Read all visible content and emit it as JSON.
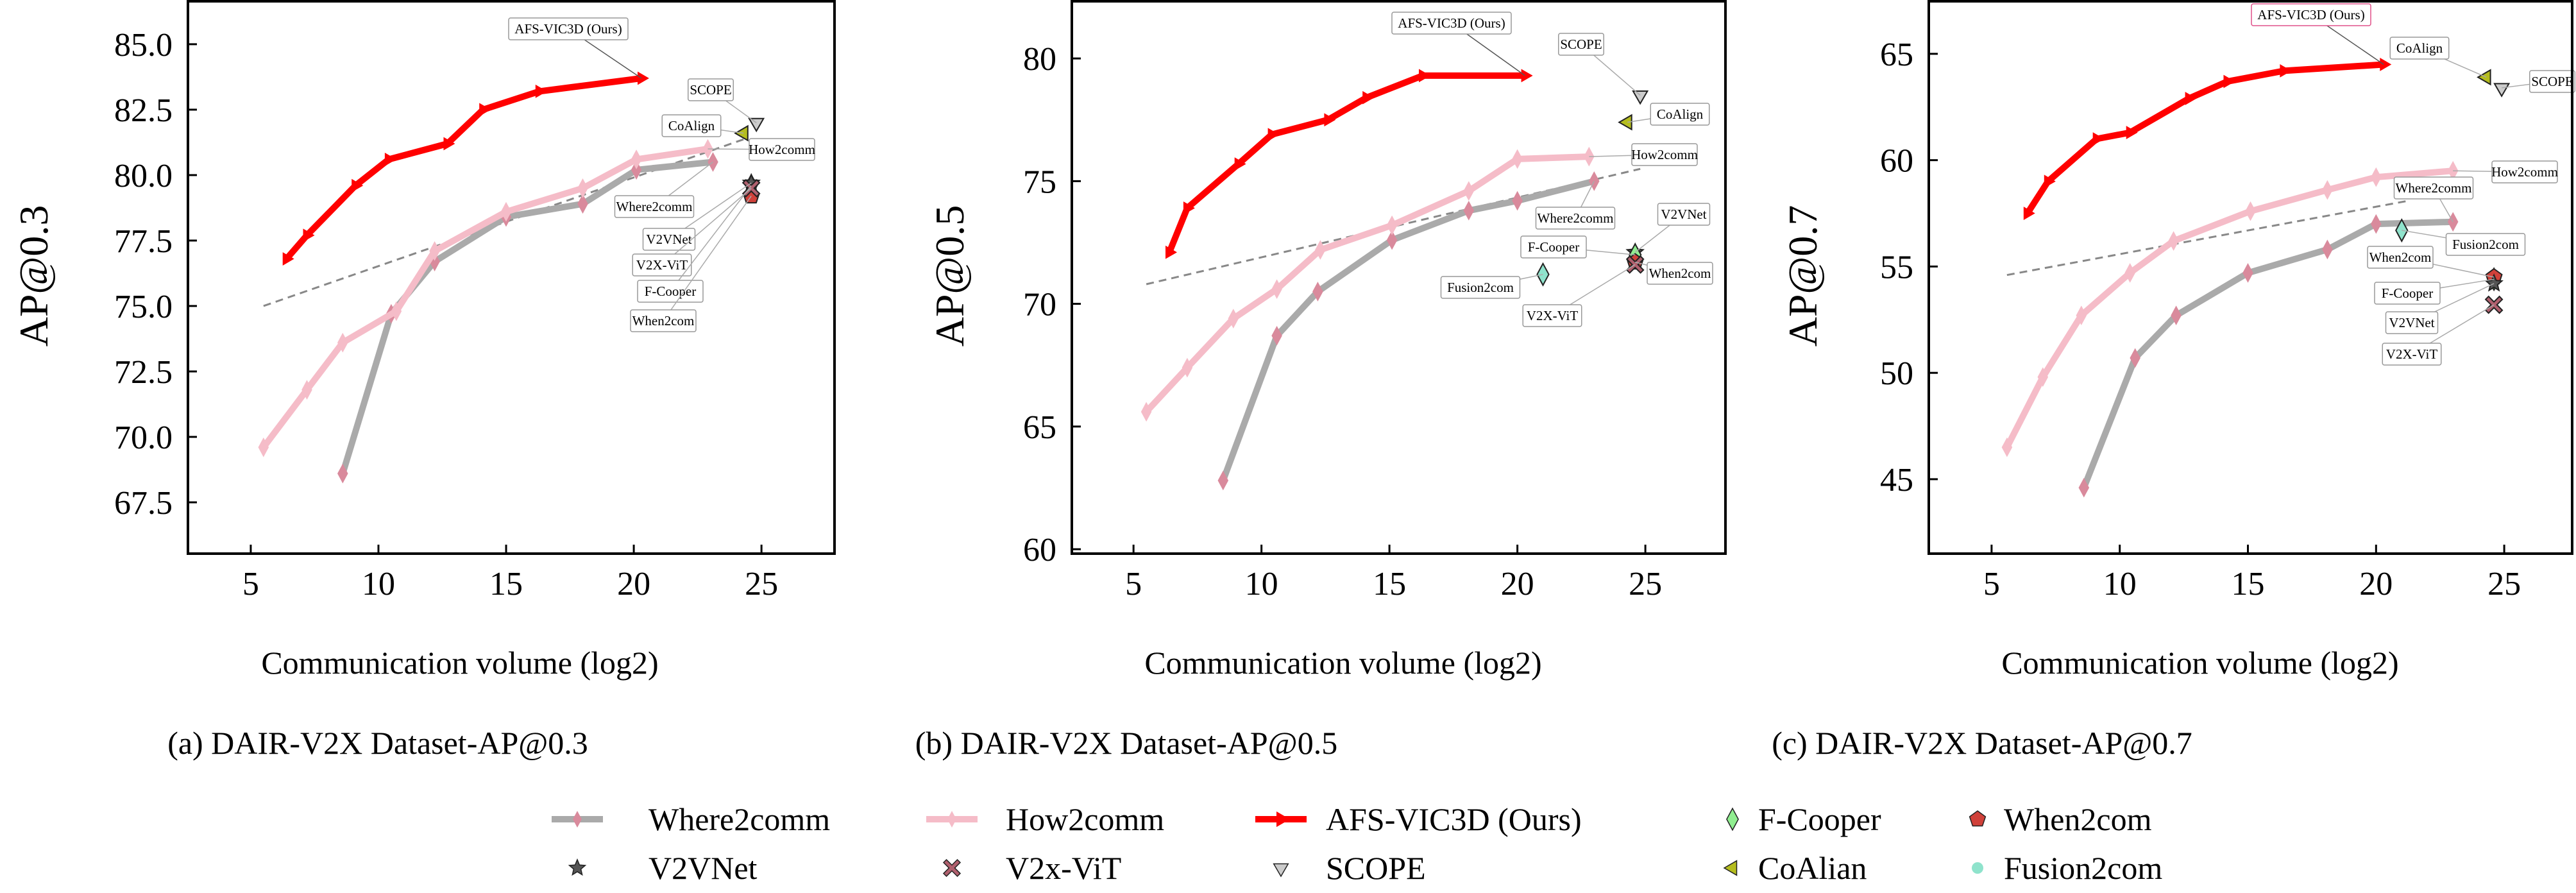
{
  "colors": {
    "afs": "#ff0000",
    "how2comm": "#f5bcc8",
    "where2comm": "#aaaaaa",
    "where2comm_marker": "#d98a9c",
    "dashed": "#888888",
    "f_cooper": "#90ee90",
    "when2com": "#d0413a",
    "v2vnet": "#555555",
    "v2x_vit": "#b0606e",
    "scope": "#cccccc",
    "coalign": "#b5bd1e",
    "fusion2com": "#8fe3cc"
  },
  "legend": {
    "items": [
      {
        "label": "Where2comm",
        "icon": "line-diamond-gray"
      },
      {
        "label": "How2comm",
        "icon": "line-pink"
      },
      {
        "label": "AFS-VIC3D (Ours)",
        "icon": "line-red-triangle"
      },
      {
        "label": "F-Cooper",
        "icon": "diamond-green"
      },
      {
        "label": "When2com",
        "icon": "pentagon-red"
      },
      {
        "label": "V2VNet",
        "icon": "star-dark"
      },
      {
        "label": "V2x-ViT",
        "icon": "x-mauve"
      },
      {
        "label": "SCOPE",
        "icon": "triangle-down-gray"
      },
      {
        "label": "CoAlian",
        "icon": "triangle-left-olive"
      },
      {
        "label": "Fusion2com",
        "icon": "circle-teal"
      }
    ]
  },
  "chart_data": [
    {
      "type": "line",
      "title": "(a) DAIR-V2X Dataset-AP@0.3",
      "xlabel": "Communication volume (log2)",
      "ylabel": "AP@0.3",
      "xlim": [
        2.54,
        27.86
      ],
      "ylim": [
        65.54,
        86.64
      ],
      "xticks": [
        5,
        10,
        15,
        20,
        25
      ],
      "xtick_labels": [
        "5",
        "10",
        "15",
        "20",
        "25"
      ],
      "yticks": [
        67.5,
        70,
        72.5,
        75,
        77.5,
        80,
        82.5,
        85
      ],
      "ytick_labels": [
        "67.5",
        "70.0",
        "72.5",
        "75.0",
        "77.5",
        "80.0",
        "82.5",
        "85.0"
      ],
      "grid": false,
      "series": [
        {
          "name": "Where2comm",
          "x": [
            8.6,
            10.5,
            12.2,
            15.0,
            18.0,
            20.1,
            23.1
          ],
          "y": [
            68.6,
            74.7,
            76.7,
            78.4,
            78.9,
            80.2,
            80.5
          ]
        },
        {
          "name": "How2comm",
          "x": [
            5.5,
            7.2,
            8.6,
            10.7,
            12.2,
            15.0,
            18.0,
            20.1,
            22.9
          ],
          "y": [
            69.6,
            71.8,
            73.6,
            74.8,
            77.1,
            78.6,
            79.5,
            80.6,
            81.0
          ]
        },
        {
          "name": "AFS-VIC3D (Ours)",
          "x": [
            6.4,
            7.2,
            9.1,
            10.4,
            12.7,
            14.1,
            16.3,
            20.3
          ],
          "y": [
            76.8,
            77.7,
            79.6,
            80.6,
            81.2,
            82.5,
            83.2,
            83.7
          ]
        }
      ],
      "trend": {
        "x": [
          5.5,
          24.4
        ],
        "y": [
          75.0,
          81.4
        ]
      },
      "points": [
        {
          "name": "F-Cooper",
          "x": 24.6,
          "y": 79.6
        },
        {
          "name": "When2com",
          "x": 24.6,
          "y": 79.2
        },
        {
          "name": "V2VNet",
          "x": 24.6,
          "y": 79.7
        },
        {
          "name": "V2X-ViT",
          "x": 24.6,
          "y": 79.5
        },
        {
          "name": "SCOPE",
          "x": 24.8,
          "y": 82.0
        },
        {
          "name": "CoAlign",
          "x": 24.3,
          "y": 81.6
        }
      ],
      "annotations": [
        "AFS-VIC3D (Ours)",
        "SCOPE",
        "CoAlign",
        "How2comm",
        "Where2comm",
        "V2VNet",
        "V2X-ViT",
        "F-Cooper",
        "When2com"
      ]
    },
    {
      "type": "line",
      "title": "(b) DAIR-V2X Dataset-AP@0.5",
      "xlabel": "Communication volume (log2)",
      "ylabel": "AP@0.5",
      "xlim": [
        2.59,
        28.13
      ],
      "ylim": [
        59.82,
        82.33
      ],
      "xticks": [
        5,
        10,
        15,
        20,
        25
      ],
      "xtick_labels": [
        "5",
        "10",
        "15",
        "20",
        "25"
      ],
      "yticks": [
        60,
        65,
        70,
        75,
        80
      ],
      "ytick_labels": [
        "60",
        "65",
        "70",
        "75",
        "80"
      ],
      "grid": false,
      "series": [
        {
          "name": "Where2comm",
          "x": [
            8.5,
            10.6,
            12.2,
            15.1,
            18.1,
            20.0,
            23.0
          ],
          "y": [
            62.8,
            68.7,
            70.5,
            72.6,
            73.8,
            74.2,
            75.0
          ]
        },
        {
          "name": "How2comm",
          "x": [
            5.5,
            7.1,
            8.9,
            10.6,
            12.3,
            15.1,
            18.1,
            20.0,
            22.8
          ],
          "y": [
            65.6,
            67.4,
            69.4,
            70.6,
            72.2,
            73.2,
            74.6,
            75.9,
            76.0
          ]
        },
        {
          "name": "AFS-VIC3D (Ours)",
          "x": [
            6.4,
            7.1,
            9.1,
            10.4,
            12.6,
            14.1,
            16.3,
            20.3
          ],
          "y": [
            72.1,
            73.9,
            75.7,
            76.9,
            77.5,
            78.4,
            79.3,
            79.3
          ]
        }
      ],
      "trend": {
        "x": [
          5.5,
          24.8
        ],
        "y": [
          70.8,
          75.5
        ]
      },
      "points": [
        {
          "name": "V2VNet",
          "x": 24.6,
          "y": 72.1
        },
        {
          "name": "F-Cooper",
          "x": 24.6,
          "y": 72.0
        },
        {
          "name": "When2com",
          "x": 24.6,
          "y": 71.7
        },
        {
          "name": "V2X-ViT",
          "x": 24.6,
          "y": 71.6
        },
        {
          "name": "SCOPE",
          "x": 24.8,
          "y": 78.5
        },
        {
          "name": "CoAlign",
          "x": 24.3,
          "y": 77.4
        },
        {
          "name": "Fusion2com",
          "x": 21.0,
          "y": 71.2
        }
      ],
      "annotations": [
        "AFS-VIC3D (Ours)",
        "SCOPE",
        "CoAlign",
        "How2comm",
        "Where2comm",
        "V2VNet",
        "F-Cooper",
        "When2com",
        "Fusion2com",
        "V2X-ViT"
      ]
    },
    {
      "type": "line",
      "title": "(c) DAIR-V2X Dataset-AP@0.7",
      "xlabel": "Communication volume (log2)",
      "ylabel": "AP@0.7",
      "xlim": [
        2.55,
        27.65
      ],
      "ylim": [
        41.5,
        67.47
      ],
      "xticks": [
        5,
        10,
        15,
        20,
        25
      ],
      "xtick_labels": [
        "5",
        "10",
        "15",
        "20",
        "25"
      ],
      "yticks": [
        45,
        50,
        55,
        60,
        65
      ],
      "ytick_labels": [
        "45",
        "50",
        "55",
        "60",
        "65"
      ],
      "grid": false,
      "series": [
        {
          "name": "Where2comm",
          "x": [
            8.6,
            10.6,
            12.2,
            15.0,
            18.1,
            20.0,
            23.0
          ],
          "y": [
            44.6,
            50.7,
            52.7,
            54.7,
            55.8,
            57.0,
            57.1
          ]
        },
        {
          "name": "How2comm",
          "x": [
            5.6,
            7.0,
            8.5,
            10.4,
            12.1,
            15.1,
            18.1,
            20.0,
            23.0
          ],
          "y": [
            46.5,
            49.8,
            52.7,
            54.7,
            56.2,
            57.6,
            58.6,
            59.2,
            59.5
          ]
        },
        {
          "name": "AFS-VIC3D (Ours)",
          "x": [
            6.4,
            7.2,
            9.1,
            10.4,
            12.7,
            14.2,
            16.4,
            20.3
          ],
          "y": [
            57.5,
            59.0,
            61.0,
            61.3,
            62.9,
            63.7,
            64.2,
            64.5
          ]
        }
      ],
      "trend": {
        "x": [
          5.6,
          21.3
        ],
        "y": [
          54.6,
          58.1
        ]
      },
      "points": [
        {
          "name": "CoAlign",
          "x": 24.3,
          "y": 63.9
        },
        {
          "name": "SCOPE",
          "x": 24.9,
          "y": 63.4
        },
        {
          "name": "Fusion2com",
          "x": 21.0,
          "y": 56.7
        },
        {
          "name": "F-Cooper",
          "x": 24.6,
          "y": 54.4
        },
        {
          "name": "When2com",
          "x": 24.6,
          "y": 54.5
        },
        {
          "name": "V2VNet",
          "x": 24.6,
          "y": 54.2
        },
        {
          "name": "V2X-ViT",
          "x": 24.6,
          "y": 53.2
        }
      ],
      "annotations": [
        "AFS-VIC3D (Ours)",
        "CoAlign",
        "SCOPE",
        "How2comm",
        "Where2comm",
        "Fusion2com",
        "When2com",
        "F-Cooper",
        "V2VNet",
        "V2X-ViT"
      ]
    }
  ]
}
